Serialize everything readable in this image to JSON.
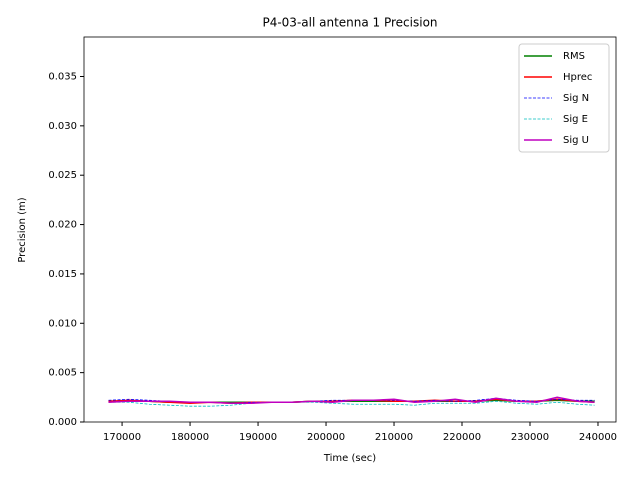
{
  "chart_data": {
    "type": "line",
    "title": "P4-03-all antenna 1 Precision",
    "x_label": "Time (sec)",
    "y_label": "Precision (m)",
    "x": [
      168000,
      171000,
      174000,
      177000,
      180000,
      183000,
      186000,
      189000,
      192000,
      195000,
      198000,
      201000,
      204000,
      207000,
      210000,
      213000,
      216000,
      219000,
      222000,
      225000,
      228000,
      231000,
      234000,
      237000,
      239500
    ],
    "series": [
      {
        "name": "RMS",
        "color": "#008000",
        "dash": false,
        "values": [
          0.0021,
          0.0021,
          0.0021,
          0.002,
          0.002,
          0.002,
          0.002,
          0.002,
          0.002,
          0.002,
          0.0021,
          0.0021,
          0.0021,
          0.0021,
          0.0021,
          0.0021,
          0.0021,
          0.0021,
          0.0021,
          0.0022,
          0.0021,
          0.0021,
          0.0022,
          0.0021,
          0.0021
        ]
      },
      {
        "name": "Hprec",
        "color": "#ff0000",
        "dash": false,
        "values": [
          0.0021,
          0.0022,
          0.0021,
          0.002,
          0.0019,
          0.002,
          0.0019,
          0.002,
          0.002,
          0.002,
          0.0021,
          0.0021,
          0.0022,
          0.0022,
          0.0021,
          0.0021,
          0.0022,
          0.0021,
          0.0021,
          0.0023,
          0.0021,
          0.0021,
          0.0023,
          0.0021,
          0.002
        ]
      },
      {
        "name": "Sig N",
        "color": "#0000ff",
        "dash": true,
        "values": [
          0.0022,
          0.0023,
          0.0022,
          0.0021,
          0.002,
          0.002,
          0.0019,
          0.002,
          0.002,
          0.002,
          0.0021,
          0.0022,
          0.0022,
          0.0022,
          0.0022,
          0.0021,
          0.0022,
          0.0021,
          0.0022,
          0.0024,
          0.0022,
          0.0021,
          0.0023,
          0.0022,
          0.0022
        ]
      },
      {
        "name": "Sig E",
        "color": "#00bfbf",
        "dash": true,
        "values": [
          0.002,
          0.002,
          0.0018,
          0.0017,
          0.0016,
          0.0016,
          0.0017,
          0.0019,
          0.002,
          0.002,
          0.002,
          0.0019,
          0.0018,
          0.0018,
          0.0018,
          0.0017,
          0.0019,
          0.0019,
          0.0019,
          0.0021,
          0.0019,
          0.0018,
          0.002,
          0.0018,
          0.0017
        ]
      },
      {
        "name": "Sig U",
        "color": "#bf00bf",
        "dash": false,
        "values": [
          0.002,
          0.0021,
          0.0021,
          0.0021,
          0.002,
          0.002,
          0.0019,
          0.0019,
          0.002,
          0.002,
          0.0021,
          0.002,
          0.0022,
          0.0022,
          0.0023,
          0.002,
          0.0021,
          0.0023,
          0.002,
          0.0024,
          0.0021,
          0.002,
          0.0025,
          0.0021,
          0.002
        ]
      }
    ],
    "xlim": [
      164400,
      242650
    ],
    "ylim": [
      0,
      0.039
    ],
    "xticks": [
      170000,
      180000,
      190000,
      200000,
      210000,
      220000,
      230000,
      240000
    ],
    "yticks": [
      {
        "value": 0,
        "label": "0.000"
      },
      {
        "value": 0.005,
        "label": "0.005"
      },
      {
        "value": 0.01,
        "label": "0.010"
      },
      {
        "value": 0.015,
        "label": "0.015"
      },
      {
        "value": 0.02,
        "label": "0.020"
      },
      {
        "value": 0.025,
        "label": "0.025"
      },
      {
        "value": 0.03,
        "label": "0.030"
      },
      {
        "value": 0.035,
        "label": "0.035"
      }
    ],
    "legend": "upper right"
  }
}
